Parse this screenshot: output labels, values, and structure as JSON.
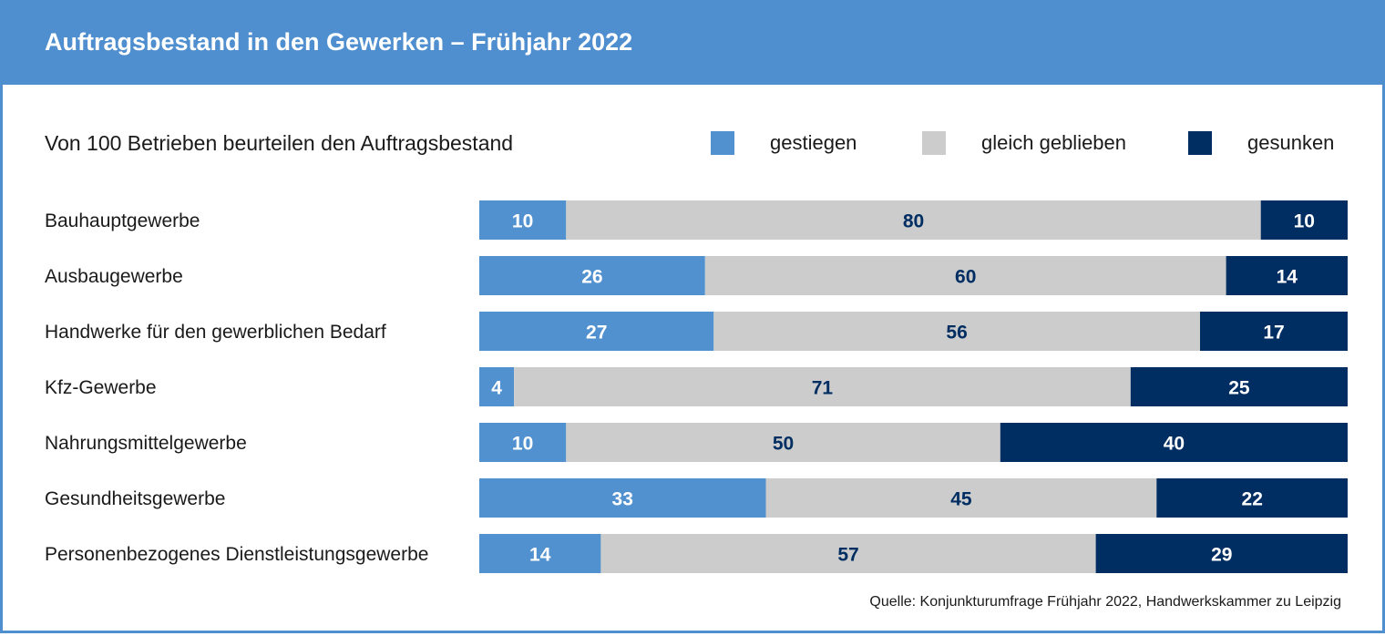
{
  "title": "Auftragsbestand in den Gewerken – Frühjahr 2022",
  "subtitle": "Von 100 Betrieben beurteilen den Auftragsbestand",
  "source": "Quelle: Konjunkturumfrage Frühjahr 2022, Handwerkskammer zu Leipzig",
  "colors": {
    "header": "#4f8fcf",
    "gestiegen": "#5291cf",
    "gleich": "#cccccc",
    "gesunken": "#002d62",
    "label_on_light": "#002d62",
    "label_on_dark": "#ffffff"
  },
  "chart_data": {
    "type": "bar",
    "orientation": "horizontal",
    "stacked": true,
    "title": "Auftragsbestand in den Gewerken – Frühjahr 2022",
    "subtitle": "Von 100 Betrieben beurteilen den Auftragsbestand",
    "legend_position": "top-right",
    "xlim": [
      0,
      100
    ],
    "categories": [
      "Bauhauptgewerbe",
      "Ausbaugewerbe",
      "Handwerke für den gewerblichen Bedarf",
      "Kfz-Gewerbe",
      "Nahrungsmittelgewerbe",
      "Gesundheitsgewerbe",
      "Personenbezogenes Dienstleistungsgewerbe"
    ],
    "series": [
      {
        "name": "gestiegen",
        "values": [
          10,
          26,
          27,
          4,
          10,
          33,
          14
        ]
      },
      {
        "name": "gleich geblieben",
        "values": [
          80,
          60,
          56,
          71,
          50,
          45,
          57
        ]
      },
      {
        "name": "gesunken",
        "values": [
          10,
          14,
          17,
          25,
          40,
          22,
          29
        ]
      }
    ]
  }
}
